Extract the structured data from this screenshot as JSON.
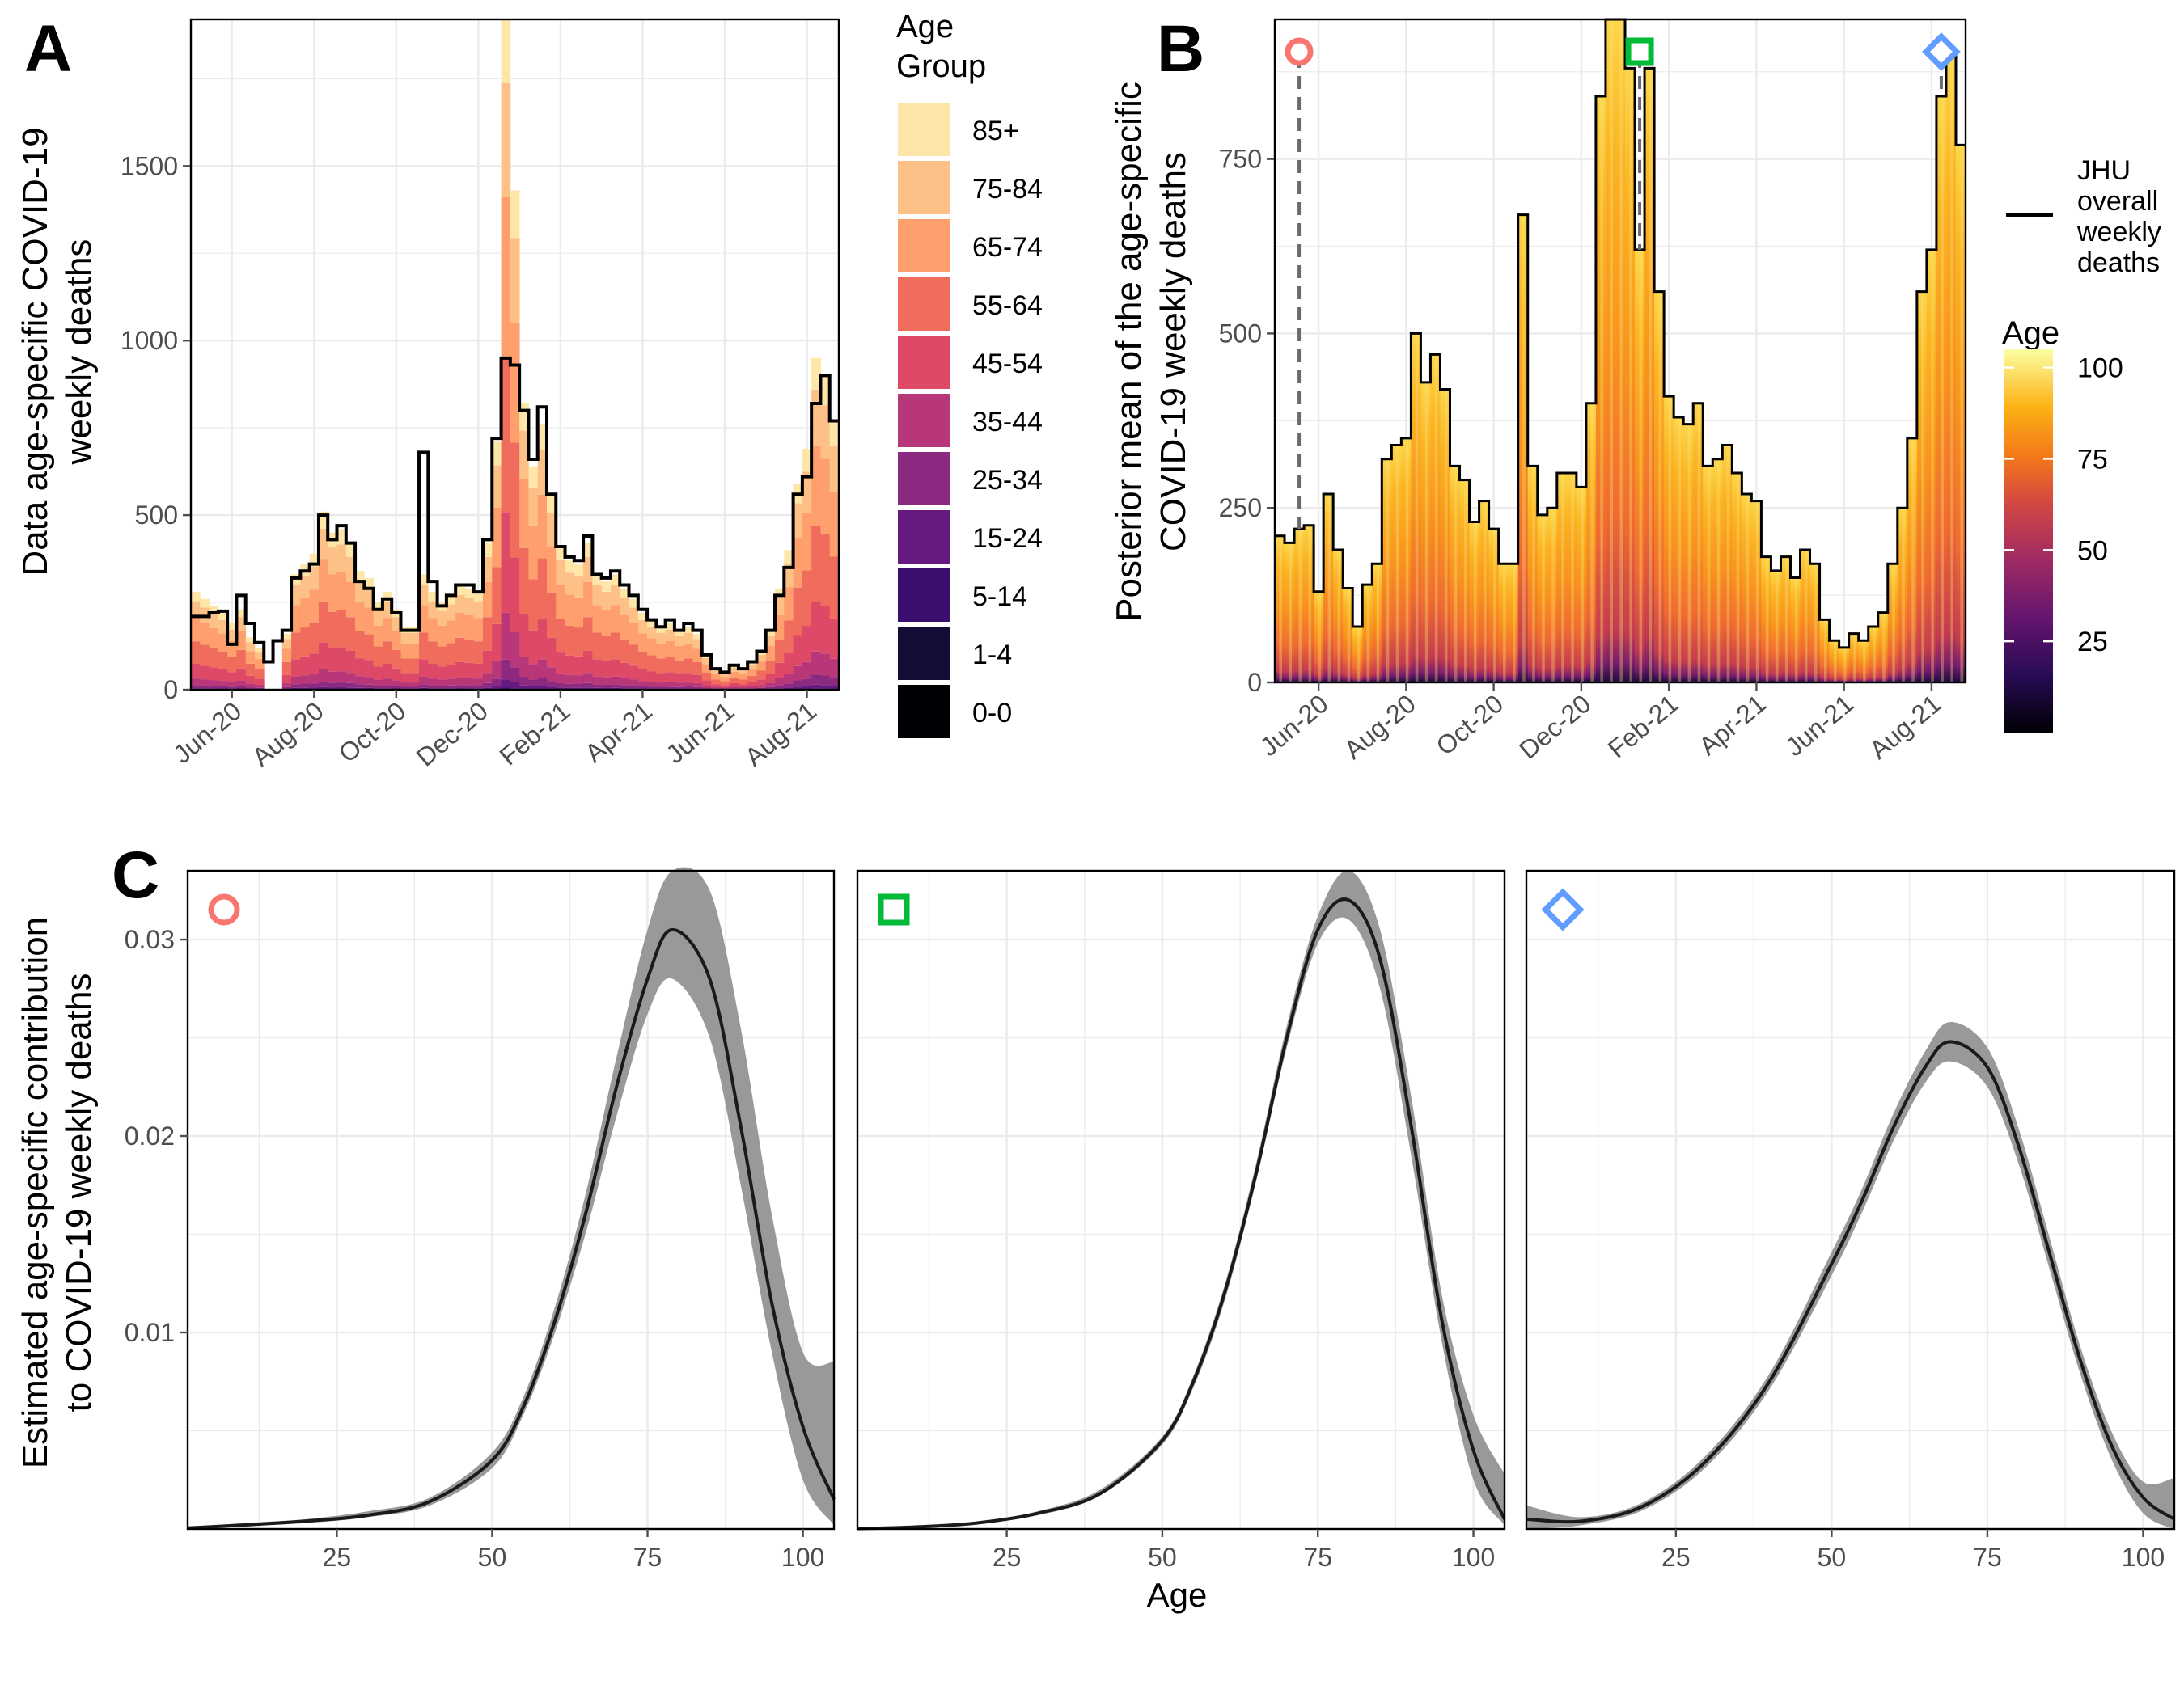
{
  "figure": {
    "panel_letters": [
      "A",
      "B",
      "C"
    ],
    "legend_age_group_title": [
      "Age",
      "Group"
    ],
    "legend_age_title": "Age",
    "legend_jhu_label": [
      "JHU",
      "overall",
      "weekly",
      "deaths"
    ]
  },
  "chart_data": [
    {
      "id": "A",
      "type": "bar",
      "stacked": true,
      "ylabel": [
        "Data age-specific COVID-19",
        "weekly deaths"
      ],
      "xlabel": "",
      "ylim": [
        0,
        1920
      ],
      "yticks": [
        0,
        500,
        1000,
        1500
      ],
      "xtick_labels": [
        "Jun-20",
        "Aug-20",
        "Oct-20",
        "Dec-20",
        "Feb-21",
        "Apr-21",
        "Jun-21",
        "Aug-21"
      ],
      "xtick_week_index": [
        4,
        13,
        22,
        31,
        40,
        49,
        58,
        67
      ],
      "age_groups": [
        "0-0",
        "1-4",
        "5-14",
        "15-24",
        "25-34",
        "35-44",
        "45-54",
        "55-64",
        "65-74",
        "75-84",
        "85+"
      ],
      "age_group_colors": [
        "#000004",
        "#140e36",
        "#3b0f70",
        "#641a80",
        "#8c2981",
        "#b73779",
        "#de4968",
        "#f06c5c",
        "#fe9f6d",
        "#fdc086",
        "#fde6a8"
      ],
      "age_group_shares": [
        0.0005,
        0.0005,
        0.002,
        0.012,
        0.03,
        0.07,
        0.15,
        0.23,
        0.24,
        0.17,
        0.095
      ],
      "week_totals": [
        210,
        210,
        220,
        225,
        130,
        270,
        190,
        135,
        80,
        140,
        170,
        320,
        340,
        360,
        500,
        430,
        470,
        420,
        310,
        290,
        230,
        260,
        220,
        170,
        170,
        680,
        310,
        240,
        270,
        300,
        300,
        280,
        430,
        720,
        950,
        930,
        800,
        660,
        810,
        560,
        410,
        380,
        370,
        440,
        330,
        320,
        340,
        300,
        270,
        230,
        200,
        180,
        200,
        170,
        190,
        170,
        100,
        60,
        50,
        70,
        60,
        80,
        110,
        170,
        270,
        350,
        560,
        610,
        820,
        900,
        770
      ],
      "week_data_totals": [
        280,
        260,
        240,
        220,
        190,
        230,
        150,
        120,
        0,
        0,
        160,
        330,
        360,
        390,
        510,
        450,
        460,
        420,
        340,
        320,
        250,
        280,
        230,
        180,
        180,
        330,
        280,
        250,
        270,
        300,
        290,
        280,
        420,
        710,
        1920,
        1430,
        820,
        640,
        760,
        560,
        410,
        370,
        360,
        420,
        330,
        310,
        330,
        290,
        260,
        220,
        200,
        180,
        190,
        170,
        180,
        160,
        100,
        60,
        50,
        70,
        60,
        80,
        110,
        170,
        290,
        400,
        590,
        690,
        950,
        900,
        770
      ],
      "legend": [
        "85+",
        "75-84",
        "65-74",
        "55-64",
        "45-54",
        "35-44",
        "25-34",
        "15-24",
        "5-14",
        "1-4",
        "0-0"
      ],
      "line_series_name": "JHU overall weekly deaths"
    },
    {
      "id": "B",
      "type": "bar",
      "ylabel": [
        "Posterior mean of the age-specific",
        "COVID-19 weekly deaths"
      ],
      "xlabel": "",
      "ylim": [
        0,
        950
      ],
      "yticks": [
        0,
        250,
        500,
        750
      ],
      "xtick_labels": [
        "Jun-20",
        "Aug-20",
        "Oct-20",
        "Dec-20",
        "Feb-21",
        "Apr-21",
        "Jun-21",
        "Aug-21"
      ],
      "xtick_week_index": [
        4,
        13,
        22,
        31,
        40,
        49,
        58,
        67
      ],
      "week_totals": [
        210,
        200,
        220,
        225,
        130,
        270,
        190,
        135,
        80,
        140,
        170,
        320,
        340,
        350,
        500,
        430,
        470,
        420,
        310,
        290,
        230,
        260,
        220,
        170,
        170,
        670,
        310,
        240,
        250,
        300,
        300,
        280,
        400,
        840,
        950,
        950,
        880,
        620,
        880,
        560,
        410,
        380,
        370,
        400,
        310,
        320,
        340,
        300,
        270,
        260,
        180,
        160,
        180,
        150,
        190,
        170,
        90,
        60,
        50,
        70,
        60,
        80,
        100,
        170,
        250,
        350,
        560,
        620,
        840,
        900,
        770
      ],
      "marker_weeks": [
        {
          "week": 2,
          "shape": "circle",
          "color": "#f8766d"
        },
        {
          "week": 37,
          "shape": "square",
          "color": "#00ba38"
        },
        {
          "week": 68,
          "shape": "diamond",
          "color": "#619cff"
        }
      ],
      "colorbar": {
        "ticks": [
          25,
          50,
          75,
          100
        ],
        "range": [
          0,
          105
        ]
      }
    },
    {
      "id": "C",
      "type": "line",
      "ylabel": [
        "Estimated age-specific contribution",
        "to COVID-19 weekly deaths"
      ],
      "xlabel": "Age",
      "xlim": [
        1,
        105
      ],
      "ylim": [
        0,
        0.0335
      ],
      "xticks": [
        25,
        50,
        75,
        100
      ],
      "yticks": [
        0.01,
        0.02,
        0.03
      ],
      "ytick_labels": [
        "0.01",
        "0.02",
        "0.03"
      ],
      "panels": [
        {
          "marker": "circle",
          "marker_color": "#f8766d",
          "ages": [
            1,
            10,
            20,
            30,
            40,
            50,
            55,
            60,
            65,
            70,
            75,
            79,
            85,
            90,
            95,
            100,
            105
          ],
          "mean": [
            5e-05,
            0.0002,
            0.0004,
            0.0007,
            0.0014,
            0.0035,
            0.0062,
            0.0105,
            0.016,
            0.0225,
            0.028,
            0.0305,
            0.028,
            0.0205,
            0.0115,
            0.0052,
            0.0015
          ],
          "lower": [
            3e-05,
            0.00015,
            0.0003,
            0.0006,
            0.0012,
            0.0031,
            0.0058,
            0.0099,
            0.015,
            0.021,
            0.0262,
            0.028,
            0.025,
            0.0175,
            0.009,
            0.0025,
            0.0002
          ],
          "upper": [
            0.0001,
            0.0003,
            0.0005,
            0.0009,
            0.0016,
            0.0039,
            0.0067,
            0.0112,
            0.017,
            0.024,
            0.0305,
            0.0335,
            0.0325,
            0.0255,
            0.016,
            0.009,
            0.0085
          ]
        },
        {
          "marker": "square",
          "marker_color": "#00ba38",
          "ages": [
            1,
            10,
            20,
            30,
            40,
            50,
            55,
            60,
            65,
            70,
            75,
            80,
            85,
            90,
            95,
            100,
            105
          ],
          "mean": [
            2e-05,
            0.0001,
            0.0003,
            0.0008,
            0.0018,
            0.0045,
            0.0075,
            0.012,
            0.018,
            0.025,
            0.0305,
            0.032,
            0.029,
            0.0205,
            0.0105,
            0.004,
            0.0005
          ],
          "lower": [
            1e-05,
            8e-05,
            0.00025,
            0.0007,
            0.0017,
            0.0043,
            0.0072,
            0.0116,
            0.0176,
            0.0245,
            0.0298,
            0.031,
            0.0275,
            0.019,
            0.0094,
            0.0025,
            0.0002
          ],
          "upper": [
            5e-05,
            0.00015,
            0.00035,
            0.0009,
            0.002,
            0.0047,
            0.0078,
            0.0124,
            0.0185,
            0.0256,
            0.0312,
            0.0335,
            0.0305,
            0.022,
            0.0118,
            0.0058,
            0.0028
          ]
        },
        {
          "marker": "diamond",
          "marker_color": "#619cff",
          "ages": [
            1,
            10,
            20,
            30,
            40,
            50,
            55,
            60,
            65,
            69,
            75,
            80,
            85,
            90,
            95,
            100,
            105
          ],
          "mean": [
            0.0005,
            0.0004,
            0.0012,
            0.0035,
            0.0075,
            0.0135,
            0.0168,
            0.0205,
            0.0235,
            0.0248,
            0.0235,
            0.0195,
            0.014,
            0.0085,
            0.0042,
            0.0016,
            0.0005
          ],
          "lower": [
            0.0,
            0.0002,
            0.001,
            0.0032,
            0.0071,
            0.0129,
            0.0162,
            0.0198,
            0.0227,
            0.0238,
            0.0225,
            0.0186,
            0.0132,
            0.0078,
            0.0035,
            0.0008,
            0.0
          ],
          "upper": [
            0.0012,
            0.0006,
            0.0014,
            0.0038,
            0.0079,
            0.0141,
            0.0174,
            0.0212,
            0.0243,
            0.0258,
            0.0245,
            0.0204,
            0.0148,
            0.0092,
            0.0049,
            0.0024,
            0.0026
          ]
        }
      ]
    }
  ]
}
